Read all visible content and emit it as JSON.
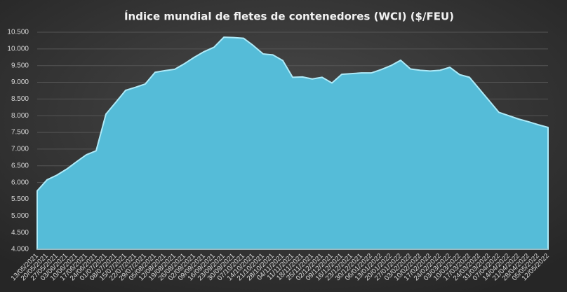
{
  "chart_data": {
    "type": "area",
    "title": "Índice mundial de fletes de contenedores (WCI) ($/FEU)",
    "categories": [
      "13/05/2021",
      "20/05/2021",
      "27/05/2021",
      "03/06/2021",
      "10/06/2021",
      "17/06/2021",
      "24/06/2021",
      "01/07/2021",
      "08/07/2021",
      "15/07/2021",
      "22/07/2021",
      "29/07/2021",
      "05/08/2021",
      "12/08/2021",
      "19/08/2021",
      "26/08/2021",
      "02/09/2021",
      "09/09/2021",
      "16/09/2021",
      "23/09/2021",
      "30/09/2021",
      "07/10/2021",
      "14/10/2021",
      "21/10/2021",
      "28/10/2021",
      "04/11/2021",
      "11/11/2021",
      "18/11/2021",
      "25/11/2021",
      "02/12/2021",
      "09/12/2021",
      "16/12/2021",
      "23/12/2021",
      "30/12/2021",
      "06/01/2022",
      "13/01/2022",
      "20/01/2022",
      "27/01/2022",
      "03/02/2022",
      "10/02/2022",
      "17/02/2022",
      "24/02/2022",
      "03/03/2022",
      "10/03/2022",
      "17/03/2022",
      "24/03/2022",
      "31/03/2022",
      "07/04/2022",
      "14/04/2022",
      "21/04/2022",
      "28/04/2022",
      "05/05/2022",
      "12/05/2022"
    ],
    "values": [
      5750,
      6080,
      6220,
      6400,
      6620,
      6830,
      6950,
      8050,
      8400,
      8760,
      8850,
      8950,
      9300,
      9350,
      9390,
      9560,
      9750,
      9920,
      10050,
      10350,
      10340,
      10320,
      10100,
      9850,
      9820,
      9650,
      9150,
      9160,
      9100,
      9150,
      8980,
      9240,
      9260,
      9280,
      9280,
      9380,
      9500,
      9660,
      9400,
      9360,
      9340,
      9360,
      9450,
      9230,
      9150,
      8800,
      8450,
      8100,
      8000,
      7900,
      7820,
      7730,
      7650
    ],
    "color": "#55bcd8",
    "ylim": [
      4000,
      10500
    ],
    "yticks": [
      {
        "value": 4000,
        "label": "4.000"
      },
      {
        "value": 4500,
        "label": "4.500"
      },
      {
        "value": 5000,
        "label": "5.000"
      },
      {
        "value": 5500,
        "label": "5.500"
      },
      {
        "value": 6000,
        "label": "6.000"
      },
      {
        "value": 6500,
        "label": "6.500"
      },
      {
        "value": 7000,
        "label": "7.000"
      },
      {
        "value": 7500,
        "label": "7.500"
      },
      {
        "value": 8000,
        "label": "8.000"
      },
      {
        "value": 8500,
        "label": "8.500"
      },
      {
        "value": 9000,
        "label": "9.000"
      },
      {
        "value": 9500,
        "label": "9.500"
      },
      {
        "value": 10000,
        "label": "10.000"
      },
      {
        "value": 10500,
        "label": "10.500"
      }
    ],
    "grid": true
  }
}
